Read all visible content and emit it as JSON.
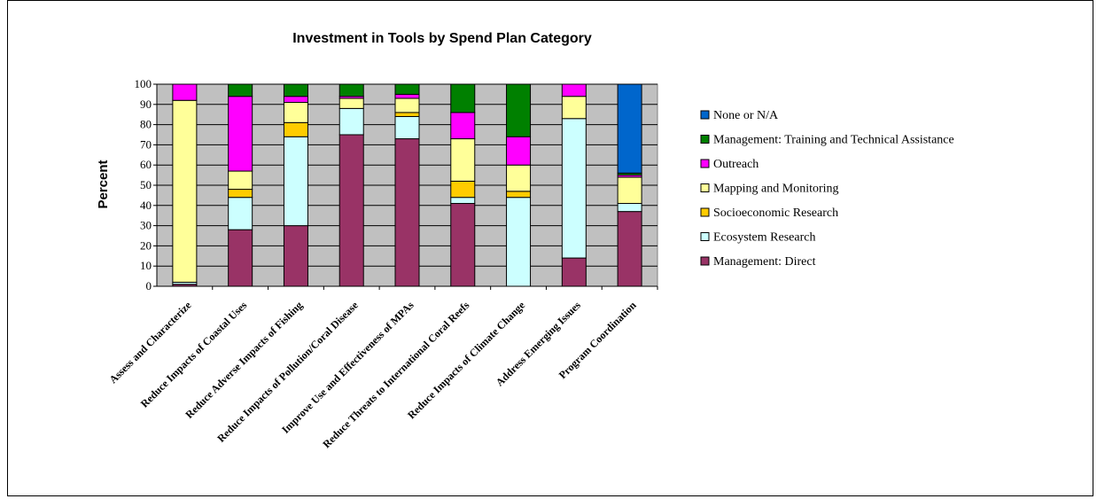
{
  "chart_data": {
    "type": "bar",
    "stacked": true,
    "title": "Investment in Tools by Spend Plan Category",
    "xlabel": "",
    "ylabel": "Percent",
    "ylim": [
      0,
      100
    ],
    "yticks": [
      "0",
      "10",
      "20",
      "30",
      "40",
      "50",
      "60",
      "70",
      "80",
      "90",
      "100"
    ],
    "grid": true,
    "legend_position": "right",
    "categories": [
      "Assess and Characterize",
      "Reduce Impacts of Coastal Uses",
      "Reduce Adverse Impacts of Fishing",
      "Reduce Impacts of Pollution/Coral Disease",
      "Improve Use and Effectiveness of MPAs",
      "Reduce Threats to International Coral Reefs",
      "Reduce Impacts of Climate Change",
      "Address Emerging Issues",
      "Program Coordination"
    ],
    "series": [
      {
        "name": "Management: Direct",
        "color": "#993366",
        "values": [
          1,
          28,
          30,
          75,
          73,
          41,
          0,
          14,
          37
        ]
      },
      {
        "name": "Ecosystem Research",
        "color": "#CCFFFF",
        "values": [
          1,
          16,
          44,
          13,
          11,
          3,
          44,
          69,
          4
        ]
      },
      {
        "name": "Socioeconomic Research",
        "color": "#FFCC00",
        "values": [
          0,
          4,
          7,
          0,
          2,
          8,
          3,
          0,
          0
        ]
      },
      {
        "name": "Mapping and Monitoring",
        "color": "#FFFF99",
        "values": [
          90,
          9,
          10,
          5,
          7,
          21,
          13,
          11,
          13
        ]
      },
      {
        "name": "Outreach",
        "color": "#FF00FF",
        "values": [
          8,
          37,
          3,
          1,
          2,
          13,
          14,
          6,
          1
        ]
      },
      {
        "name": "Management: Training and Technical Assistance",
        "color": "#008000",
        "values": [
          0,
          6,
          6,
          6,
          5,
          14,
          26,
          0,
          1
        ]
      },
      {
        "name": "None or N/A",
        "color": "#0066CC",
        "values": [
          0,
          0,
          0,
          0,
          0,
          0,
          0,
          0,
          44
        ]
      }
    ],
    "plot_background": "#C0C0C0"
  }
}
